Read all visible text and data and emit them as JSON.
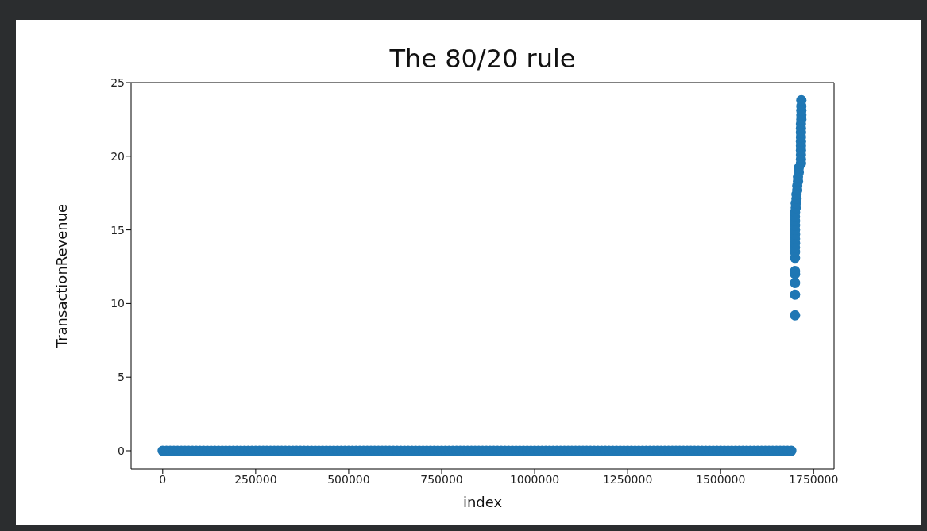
{
  "chart_data": {
    "type": "scatter",
    "title": "The 80/20 rule",
    "xlabel": "index",
    "ylabel": "TransactionRevenue",
    "xlim": [
      -85000,
      1805000
    ],
    "xticks": [
      0,
      250000,
      500000,
      750000,
      1000000,
      1250000,
      1500000,
      1750000
    ],
    "ylim": [
      -1.24,
      25
    ],
    "yticks": [
      0,
      5,
      10,
      15,
      20,
      25
    ],
    "marker": "circle",
    "series": [
      {
        "color": "#1f77b4",
        "x": [
          0,
          10000,
          20000,
          30000,
          40000,
          50000,
          60000,
          70000,
          80000,
          90000,
          100000,
          110000,
          120000,
          130000,
          140000,
          150000,
          160000,
          170000,
          180000,
          190000,
          200000,
          210000,
          220000,
          230000,
          240000,
          250000,
          260000,
          270000,
          280000,
          290000,
          300000,
          310000,
          320000,
          330000,
          340000,
          350000,
          360000,
          370000,
          380000,
          390000,
          400000,
          410000,
          420000,
          430000,
          440000,
          450000,
          460000,
          470000,
          480000,
          490000,
          500000,
          510000,
          520000,
          530000,
          540000,
          550000,
          560000,
          570000,
          580000,
          590000,
          600000,
          610000,
          620000,
          630000,
          640000,
          650000,
          660000,
          670000,
          680000,
          690000,
          700000,
          710000,
          720000,
          730000,
          740000,
          750000,
          760000,
          770000,
          780000,
          790000,
          800000,
          810000,
          820000,
          830000,
          840000,
          850000,
          860000,
          870000,
          880000,
          890000,
          900000,
          910000,
          920000,
          930000,
          940000,
          950000,
          960000,
          970000,
          980000,
          990000,
          1000000,
          1010000,
          1020000,
          1030000,
          1040000,
          1050000,
          1060000,
          1070000,
          1080000,
          1090000,
          1100000,
          1110000,
          1120000,
          1130000,
          1140000,
          1150000,
          1160000,
          1170000,
          1180000,
          1190000,
          1200000,
          1210000,
          1220000,
          1230000,
          1240000,
          1250000,
          1260000,
          1270000,
          1280000,
          1290000,
          1300000,
          1310000,
          1320000,
          1330000,
          1340000,
          1350000,
          1360000,
          1370000,
          1380000,
          1390000,
          1400000,
          1410000,
          1420000,
          1430000,
          1440000,
          1450000,
          1460000,
          1470000,
          1480000,
          1490000,
          1500000,
          1510000,
          1520000,
          1530000,
          1540000,
          1550000,
          1560000,
          1570000,
          1580000,
          1590000,
          1600000,
          1610000,
          1620000,
          1630000,
          1640000,
          1650000,
          1660000,
          1670000,
          1680000,
          1690000,
          1700000,
          1700000,
          1700000,
          1700000,
          1700000,
          1700000,
          1700000,
          1700000,
          1700000,
          1700000,
          1700000,
          1700000,
          1700000,
          1700000,
          1700000,
          1700000,
          1702000,
          1702000,
          1704000,
          1704000,
          1706000,
          1706000,
          1708000,
          1708000,
          1710000,
          1710000,
          1716000,
          1716000,
          1716000,
          1716000,
          1716000,
          1716000,
          1716000,
          1716000,
          1716000,
          1716000,
          1717000,
          1717000,
          1717000,
          1717000,
          1717000
        ],
        "values": [
          0,
          0,
          0,
          0,
          0,
          0,
          0,
          0,
          0,
          0,
          0,
          0,
          0,
          0,
          0,
          0,
          0,
          0,
          0,
          0,
          0,
          0,
          0,
          0,
          0,
          0,
          0,
          0,
          0,
          0,
          0,
          0,
          0,
          0,
          0,
          0,
          0,
          0,
          0,
          0,
          0,
          0,
          0,
          0,
          0,
          0,
          0,
          0,
          0,
          0,
          0,
          0,
          0,
          0,
          0,
          0,
          0,
          0,
          0,
          0,
          0,
          0,
          0,
          0,
          0,
          0,
          0,
          0,
          0,
          0,
          0,
          0,
          0,
          0,
          0,
          0,
          0,
          0,
          0,
          0,
          0,
          0,
          0,
          0,
          0,
          0,
          0,
          0,
          0,
          0,
          0,
          0,
          0,
          0,
          0,
          0,
          0,
          0,
          0,
          0,
          0,
          0,
          0,
          0,
          0,
          0,
          0,
          0,
          0,
          0,
          0,
          0,
          0,
          0,
          0,
          0,
          0,
          0,
          0,
          0,
          0,
          0,
          0,
          0,
          0,
          0,
          0,
          0,
          0,
          0,
          0,
          0,
          0,
          0,
          0,
          0,
          0,
          0,
          0,
          0,
          0,
          0,
          0,
          0,
          0,
          0,
          0,
          0,
          0,
          0,
          0,
          0,
          0,
          0,
          0,
          0,
          0,
          0,
          0,
          0,
          0,
          0,
          0,
          0,
          0,
          0,
          0,
          0,
          0,
          0,
          9.2,
          10.6,
          11.4,
          12.0,
          12.2,
          13.1,
          13.5,
          13.8,
          14.1,
          14.4,
          14.7,
          15.0,
          15.3,
          15.6,
          15.9,
          16.2,
          16.5,
          16.8,
          17.1,
          17.4,
          17.7,
          18.0,
          18.3,
          18.6,
          18.9,
          19.2,
          19.5,
          19.8,
          20.1,
          20.4,
          20.7,
          21.0,
          21.3,
          21.6,
          21.9,
          22.2,
          22.5,
          22.8,
          23.1,
          23.4,
          23.8
        ]
      }
    ]
  }
}
